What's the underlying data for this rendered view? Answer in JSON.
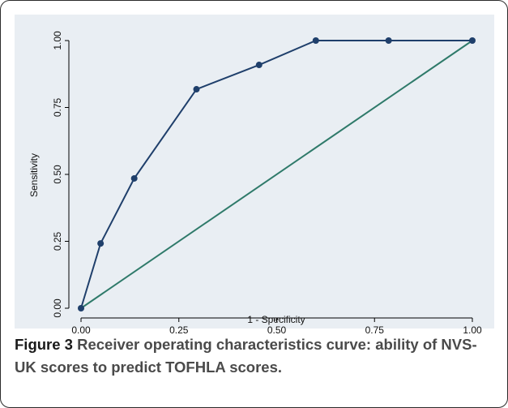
{
  "caption": {
    "label": "Figure 3",
    "text": "Receiver operating characteristics curve: ability of NVS-UK scores to predict TOFHLA scores."
  },
  "colors": {
    "background": "#e9eef3",
    "roc_line": "#1f3f6b",
    "reference_line": "#2f7a6a",
    "axis": "#000000"
  },
  "chart_data": {
    "type": "line",
    "title": "",
    "xlabel": "1 - Specificity",
    "ylabel": "Sensitivity",
    "xlim": [
      0,
      1
    ],
    "ylim": [
      0,
      1
    ],
    "grid": false,
    "x_ticks": [
      "0.00",
      "0.25",
      "0.50",
      "0.75",
      "1.00"
    ],
    "y_ticks": [
      "0.00",
      "0.25",
      "0.50",
      "0.75",
      "1.00"
    ],
    "series": [
      {
        "x": [
          0.0,
          0.05,
          0.136,
          0.295,
          0.455,
          0.6,
          0.786,
          1.0
        ],
        "y": [
          0.0,
          0.242,
          0.485,
          0.818,
          0.909,
          1.0,
          1.0,
          1.0
        ],
        "markers": true
      },
      {
        "x": [
          0.0,
          1.0
        ],
        "y": [
          0.0,
          1.0
        ],
        "markers": false
      }
    ]
  }
}
